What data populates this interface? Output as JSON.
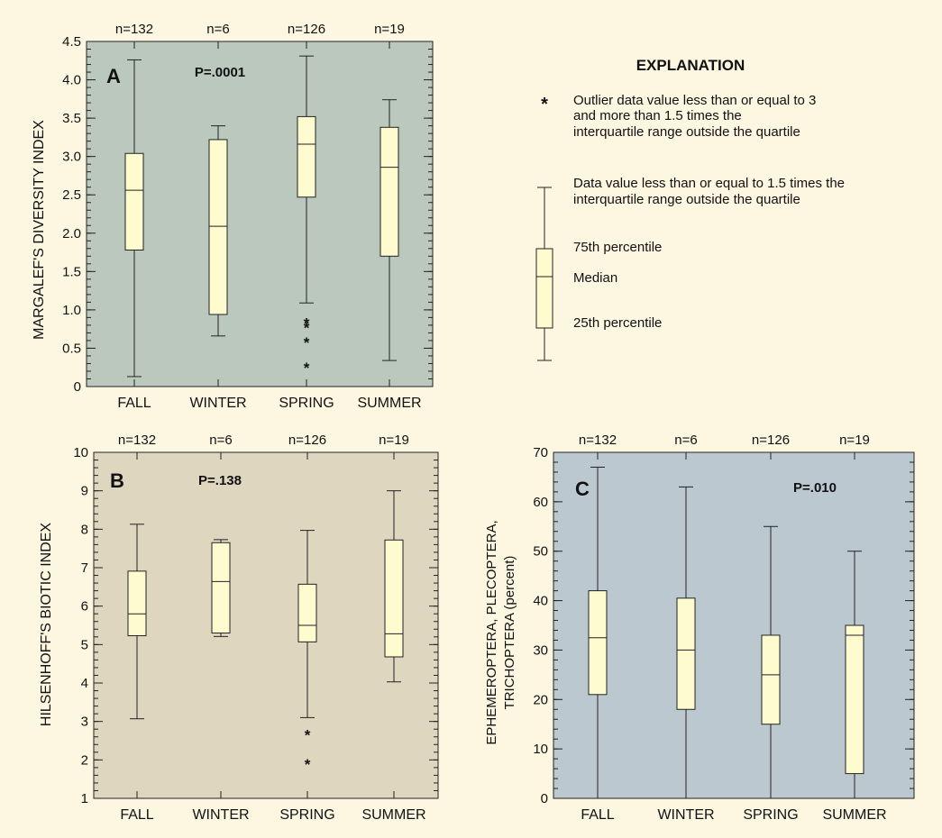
{
  "colors": {
    "page_background": "#fdf6e0",
    "box_fill": "#fefbcf",
    "panel_a_bg": "#bbc8bd",
    "panel_b_bg": "#dfd6c0",
    "panel_c_bg": "#bcc8cf",
    "stroke": "#222222"
  },
  "chart_data": [
    {
      "type": "boxplot",
      "panel_label": "A",
      "p_value": "P=.0001",
      "ylabel": "MARGALEF'S DIVERSITY INDEX",
      "xlabel": "",
      "ylim": [
        0,
        4.5
      ],
      "y_ticks": [
        "0",
        "0.5",
        "1.0",
        "1.5",
        "2.0",
        "2.5",
        "3.0",
        "3.5",
        "4.0",
        "4.5"
      ],
      "minor_tick_step": 0.1,
      "background": "#bbc8bd",
      "categories": [
        "FALL",
        "WINTER",
        "SPRING",
        "SUMMER"
      ],
      "n_labels": [
        "n=132",
        "n=6",
        "n=126",
        "n=19"
      ],
      "boxes": [
        {
          "low": 0.13,
          "q1": 1.78,
          "median": 2.56,
          "q3": 3.04,
          "high": 4.26,
          "outliers": []
        },
        {
          "low": 0.66,
          "q1": 0.94,
          "median": 2.09,
          "q3": 3.22,
          "high": 3.4,
          "outliers": []
        },
        {
          "low": 1.09,
          "q1": 2.47,
          "median": 3.16,
          "q3": 3.52,
          "high": 4.31,
          "outliers": [
            0.84,
            0.78,
            0.59,
            0.26
          ]
        },
        {
          "low": 0.34,
          "q1": 1.7,
          "median": 2.86,
          "q3": 3.38,
          "high": 3.74,
          "outliers": []
        }
      ]
    },
    {
      "type": "boxplot",
      "panel_label": "B",
      "p_value": "P=.138",
      "ylabel": "HILSENHOFF'S  BIOTIC INDEX",
      "xlabel": "",
      "ylim": [
        1,
        10
      ],
      "y_ticks": [
        "1",
        "2",
        "3",
        "4",
        "5",
        "6",
        "7",
        "8",
        "9",
        "10"
      ],
      "minor_tick_step": 0.2,
      "background": "#dfd6c0",
      "categories": [
        "FALL",
        "WINTER",
        "SPRING",
        "SUMMER"
      ],
      "n_labels": [
        "n=132",
        "n=6",
        "n=126",
        "n=19"
      ],
      "boxes": [
        {
          "low": 3.07,
          "q1": 5.23,
          "median": 5.8,
          "q3": 6.91,
          "high": 8.13,
          "outliers": []
        },
        {
          "low": 5.21,
          "q1": 5.3,
          "median": 6.64,
          "q3": 7.65,
          "high": 7.73,
          "outliers": []
        },
        {
          "low": 3.1,
          "q1": 5.07,
          "median": 5.5,
          "q3": 6.57,
          "high": 7.97,
          "outliers": [
            2.67,
            1.91
          ]
        },
        {
          "low": 4.03,
          "q1": 4.68,
          "median": 5.28,
          "q3": 7.72,
          "high": 9.0,
          "outliers": []
        }
      ]
    },
    {
      "type": "boxplot",
      "panel_label": "C",
      "p_value": "P=.010",
      "ylabel": "EPHEMEROPTERA, PLECOPTERA, TRICHOPTERA (percent)",
      "ylabel_lines": [
        "EPHEMEROPTERA, PLECOPTERA,",
        "TRICHOPTERA (percent)"
      ],
      "xlabel": "",
      "ylim": [
        0,
        70
      ],
      "y_ticks": [
        "0",
        "10",
        "20",
        "30",
        "40",
        "50",
        "60",
        "70"
      ],
      "minor_tick_step": 2,
      "background": "#bcc8cf",
      "categories": [
        "FALL",
        "WINTER",
        "SPRING",
        "SUMMER"
      ],
      "n_labels": [
        "n=132",
        "n=6",
        "n=126",
        "n=19"
      ],
      "boxes": [
        {
          "low": 0,
          "q1": 21,
          "median": 32.5,
          "q3": 42,
          "high": 67,
          "outliers": []
        },
        {
          "low": 0,
          "q1": 18,
          "median": 30,
          "q3": 40.5,
          "high": 63,
          "outliers": []
        },
        {
          "low": 0,
          "q1": 15,
          "median": 25,
          "q3": 33,
          "high": 55,
          "outliers": []
        },
        {
          "low": 0,
          "q1": 5,
          "median": 33,
          "q3": 35,
          "high": 50,
          "outliers": []
        }
      ]
    }
  ],
  "explanation": {
    "title": "EXPLANATION",
    "outlier_line1": "Outlier data value less than or equal to 3",
    "outlier_line2": "and more than 1.5 times the",
    "outlier_line3": "interquartile range outside the quartile",
    "whisker_line1": "Data value less than or equal to 1.5 times the",
    "whisker_line2": "interquartile range outside the quartile",
    "q3_label": "75th percentile",
    "median_label": "Median",
    "q1_label": "25th percentile"
  }
}
